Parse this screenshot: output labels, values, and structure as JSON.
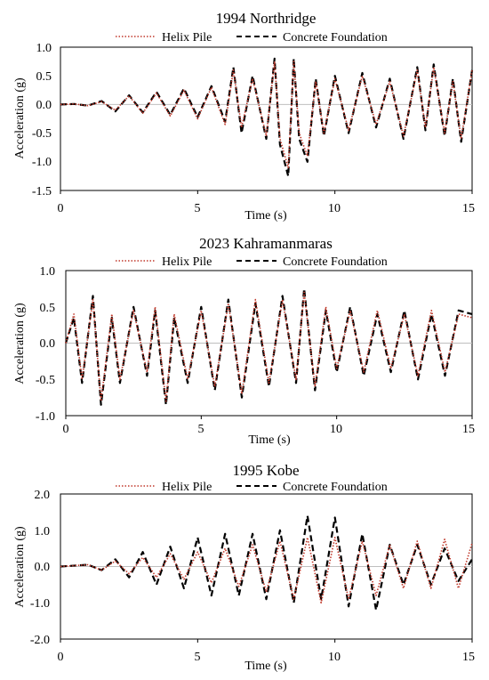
{
  "chart_data": [
    {
      "type": "line",
      "title": "1994 Northridge",
      "xlabel": "Time (s)",
      "ylabel": "Acceleration (g)",
      "xlim": [
        0,
        15
      ],
      "ylim": [
        -1.5,
        1.0
      ],
      "xticks": [
        "0",
        "5",
        "10",
        "15"
      ],
      "yticks": [
        "1.0",
        "0.5",
        "0.0",
        "-0.5",
        "-1.0",
        "-1.5"
      ],
      "grid": false,
      "legend_position": "top",
      "series": [
        {
          "name": "Helix Pile",
          "color": "#c0392b",
          "style": "dotted",
          "x": [
            0,
            0.5,
            1,
            1.5,
            2,
            2.5,
            3,
            3.5,
            4,
            4.5,
            5,
            5.5,
            6,
            6.3,
            6.6,
            7,
            7.5,
            7.8,
            8,
            8.3,
            8.5,
            8.7,
            9,
            9.3,
            9.6,
            10,
            10.5,
            11,
            11.5,
            12,
            12.5,
            13,
            13.3,
            13.6,
            14,
            14.3,
            14.6,
            15
          ],
          "y": [
            0,
            0.01,
            -0.02,
            0.05,
            -0.1,
            0.15,
            -0.15,
            0.2,
            -0.2,
            0.25,
            -0.25,
            0.3,
            -0.35,
            0.6,
            -0.4,
            0.45,
            -0.55,
            0.75,
            -0.6,
            -1.1,
            0.75,
            -0.5,
            -0.9,
            0.4,
            -0.5,
            0.45,
            -0.45,
            0.5,
            -0.35,
            0.4,
            -0.55,
            0.6,
            -0.4,
            0.65,
            -0.5,
            0.4,
            -0.6,
            0.6
          ]
        },
        {
          "name": "Concrete Foundation",
          "color": "#000000",
          "style": "dashed",
          "x": [
            0,
            0.5,
            1,
            1.5,
            2,
            2.5,
            3,
            3.5,
            4,
            4.5,
            5,
            5.5,
            6,
            6.3,
            6.6,
            7,
            7.5,
            7.8,
            8,
            8.3,
            8.5,
            8.7,
            9,
            9.3,
            9.6,
            10,
            10.5,
            11,
            11.5,
            12,
            12.5,
            13,
            13.3,
            13.6,
            14,
            14.3,
            14.6,
            15
          ],
          "y": [
            0,
            0.01,
            -0.02,
            0.06,
            -0.12,
            0.16,
            -0.14,
            0.22,
            -0.18,
            0.28,
            -0.22,
            0.32,
            -0.3,
            0.65,
            -0.5,
            0.5,
            -0.6,
            0.8,
            -0.7,
            -1.25,
            0.8,
            -0.6,
            -1.0,
            0.45,
            -0.55,
            0.5,
            -0.5,
            0.55,
            -0.4,
            0.45,
            -0.6,
            0.65,
            -0.45,
            0.7,
            -0.55,
            0.45,
            -0.65,
            0.6
          ]
        }
      ]
    },
    {
      "type": "line",
      "title": "2023 Kahramanmaras",
      "xlabel": "Time (s)",
      "ylabel": "Acceleration (g)",
      "xlim": [
        0,
        15
      ],
      "ylim": [
        -1.0,
        1.0
      ],
      "xticks": [
        "0",
        "5",
        "10",
        "15"
      ],
      "yticks": [
        "1.0",
        "0.5",
        "0.0",
        "-0.5",
        "-1.0"
      ],
      "grid": false,
      "legend_position": "top",
      "series": [
        {
          "name": "Helix Pile",
          "color": "#c0392b",
          "style": "dotted",
          "x": [
            0,
            0.3,
            0.6,
            1,
            1.3,
            1.7,
            2,
            2.5,
            3,
            3.3,
            3.7,
            4,
            4.5,
            5,
            5.5,
            6,
            6.5,
            7,
            7.5,
            8,
            8.5,
            8.8,
            9.2,
            9.6,
            10,
            10.5,
            11,
            11.5,
            12,
            12.5,
            13,
            13.5,
            14,
            14.5,
            15
          ],
          "y": [
            0,
            0.4,
            -0.5,
            0.6,
            -0.8,
            0.4,
            -0.5,
            0.45,
            -0.4,
            0.5,
            -0.8,
            0.4,
            -0.5,
            0.45,
            -0.6,
            0.55,
            -0.7,
            0.6,
            -0.55,
            0.6,
            -0.5,
            0.7,
            -0.6,
            0.5,
            -0.35,
            0.45,
            -0.4,
            0.45,
            -0.35,
            0.4,
            -0.45,
            0.45,
            -0.4,
            0.4,
            0.35
          ]
        },
        {
          "name": "Concrete Foundation",
          "color": "#000000",
          "style": "dashed",
          "x": [
            0,
            0.3,
            0.6,
            1,
            1.3,
            1.7,
            2,
            2.5,
            3,
            3.3,
            3.7,
            4,
            4.5,
            5,
            5.5,
            6,
            6.5,
            7,
            7.5,
            8,
            8.5,
            8.8,
            9.2,
            9.6,
            10,
            10.5,
            11,
            11.5,
            12,
            12.5,
            13,
            13.5,
            14,
            14.5,
            15
          ],
          "y": [
            0,
            0.35,
            -0.55,
            0.65,
            -0.85,
            0.35,
            -0.55,
            0.5,
            -0.45,
            0.45,
            -0.85,
            0.35,
            -0.55,
            0.5,
            -0.65,
            0.6,
            -0.75,
            0.55,
            -0.6,
            0.65,
            -0.55,
            0.75,
            -0.65,
            0.45,
            -0.4,
            0.5,
            -0.45,
            0.4,
            -0.4,
            0.45,
            -0.5,
            0.4,
            -0.45,
            0.45,
            0.4
          ]
        }
      ]
    },
    {
      "type": "line",
      "title": "1995 Kobe",
      "xlabel": "Time (s)",
      "ylabel": "Acceleration (g)",
      "xlim": [
        0,
        15
      ],
      "ylim": [
        -2.0,
        2.0
      ],
      "xticks": [
        "0",
        "5",
        "10",
        "15"
      ],
      "yticks": [
        "2.0",
        "1.0",
        "0.0",
        "-1.0",
        "-2.0"
      ],
      "grid": false,
      "legend_position": "top",
      "series": [
        {
          "name": "Helix Pile",
          "color": "#c0392b",
          "style": "dotted",
          "x": [
            0,
            1,
            1.5,
            2,
            2.5,
            3,
            3.5,
            4,
            4.5,
            5,
            5.5,
            6,
            6.5,
            7,
            7.5,
            8,
            8.5,
            9,
            9.5,
            10,
            10.5,
            11,
            11.5,
            12,
            12.5,
            13,
            13.5,
            14,
            14.5,
            15
          ],
          "y": [
            0,
            0.05,
            -0.1,
            0.15,
            -0.2,
            0.25,
            -0.3,
            0.35,
            -0.35,
            0.4,
            -0.45,
            0.5,
            -0.55,
            0.6,
            -0.7,
            0.7,
            -0.9,
            0.8,
            -1.0,
            0.8,
            -0.9,
            0.7,
            -0.8,
            0.6,
            -0.6,
            0.7,
            -0.6,
            0.75,
            -0.6,
            0.65
          ]
        },
        {
          "name": "Concrete Foundation",
          "color": "#000000",
          "style": "dashed",
          "x": [
            0,
            1,
            1.5,
            2,
            2.5,
            3,
            3.5,
            4,
            4.5,
            5,
            5.5,
            6,
            6.5,
            7,
            7.5,
            8,
            8.5,
            9,
            9.5,
            10,
            10.5,
            11,
            11.5,
            12,
            12.5,
            13,
            13.5,
            14,
            14.5,
            15
          ],
          "y": [
            0,
            0.05,
            -0.1,
            0.2,
            -0.3,
            0.4,
            -0.5,
            0.55,
            -0.6,
            0.8,
            -0.8,
            0.9,
            -0.8,
            0.9,
            -0.9,
            1.0,
            -1.0,
            1.4,
            -0.9,
            1.35,
            -1.1,
            0.9,
            -1.2,
            0.6,
            -0.5,
            0.6,
            -0.5,
            0.5,
            -0.4,
            0.2
          ]
        }
      ]
    }
  ]
}
